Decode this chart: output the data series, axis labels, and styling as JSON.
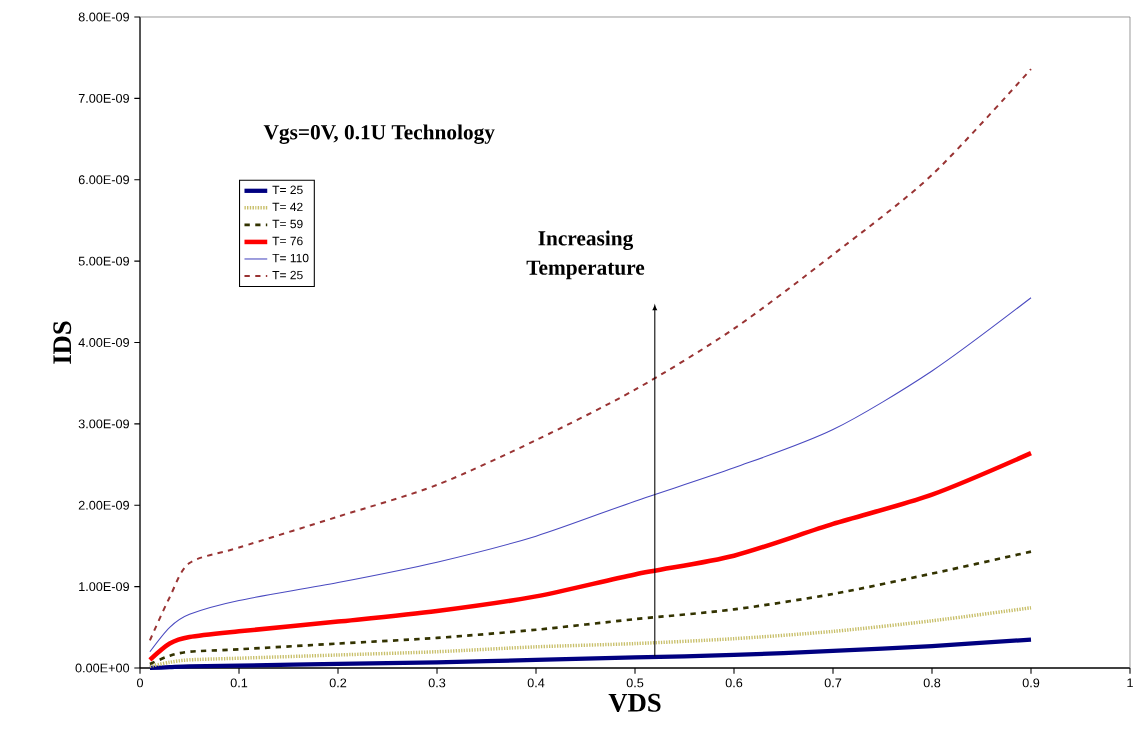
{
  "chart_data": {
    "type": "line",
    "xlabel": "VDS",
    "ylabel": "IDS",
    "annotations": [
      "Vgs=0V, 0.1U Technology",
      "Increasing Temperature"
    ],
    "xlim": [
      0,
      1
    ],
    "xticks": [
      0,
      0.1,
      0.2,
      0.3,
      0.4,
      0.5,
      0.6,
      0.7,
      0.8,
      0.9,
      1
    ],
    "ylim": [
      0,
      8e-09
    ],
    "yticks": [
      {
        "value": 0,
        "label": "0.00E+00"
      },
      {
        "value": 1e-09,
        "label": "1.00E-09"
      },
      {
        "value": 2e-09,
        "label": "2.00E-09"
      },
      {
        "value": 3e-09,
        "label": "3.00E-09"
      },
      {
        "value": 4e-09,
        "label": "4.00E-09"
      },
      {
        "value": 5e-09,
        "label": "5.00E-09"
      },
      {
        "value": 6e-09,
        "label": "6.00E-09"
      },
      {
        "value": 7e-09,
        "label": "7.00E-09"
      },
      {
        "value": 8e-09,
        "label": "8.00E-09"
      }
    ],
    "x": [
      0.01,
      0.03,
      0.05,
      0.1,
      0.2,
      0.3,
      0.4,
      0.5,
      0.6,
      0.7,
      0.8,
      0.9
    ],
    "grid": false,
    "legend": "top left",
    "marker": "none",
    "series": [
      {
        "name": "T= 25",
        "color": "#000080",
        "line_style": "solid",
        "values": [
          0.0,
          1e-11,
          2e-11,
          3e-11,
          5e-11,
          7e-11,
          1e-10,
          1.3e-10,
          1.6e-10,
          2.1e-10,
          2.7e-10,
          3.5e-10
        ]
      },
      {
        "name": "T= 42",
        "color": "#c8bf6a",
        "line_style": "dotted",
        "values": [
          2e-11,
          7e-11,
          1e-10,
          1.2e-10,
          1.6e-10,
          2e-10,
          2.6e-10,
          3e-10,
          3.6e-10,
          4.5e-10,
          5.8e-10,
          7.4e-10
        ]
      },
      {
        "name": "T= 59",
        "color": "#333300",
        "line_style": "dashed",
        "values": [
          5e-11,
          1.5e-10,
          2e-10,
          2.3e-10,
          3e-10,
          3.7e-10,
          4.7e-10,
          6e-10,
          7.2e-10,
          9.1e-10,
          1.16e-09,
          1.43e-09
        ]
      },
      {
        "name": "T= 76",
        "color": "#ff0000",
        "line_style": "solid",
        "values": [
          1e-10,
          3e-10,
          3.8e-10,
          4.5e-10,
          5.7e-10,
          7e-10,
          8.8e-10,
          1.15e-09,
          1.38e-09,
          1.77e-09,
          2.13e-09,
          2.64e-09
        ]
      },
      {
        "name": "T= 110",
        "color": "#4a4ac0",
        "line_style": "solid",
        "values": [
          2e-10,
          5e-10,
          6.6e-10,
          8.3e-10,
          1.05e-09,
          1.3e-09,
          1.62e-09,
          2.05e-09,
          2.46e-09,
          2.93e-09,
          3.65e-09,
          4.55e-09
        ]
      },
      {
        "name": "T= 25",
        "color": "#993333",
        "line_style": "dashed",
        "values": [
          3.4e-10,
          8.7e-10,
          1.29e-09,
          1.48e-09,
          1.86e-09,
          2.25e-09,
          2.8e-09,
          3.42e-09,
          4.17e-09,
          5.08e-09,
          6.06e-09,
          7.36e-09
        ]
      }
    ]
  }
}
